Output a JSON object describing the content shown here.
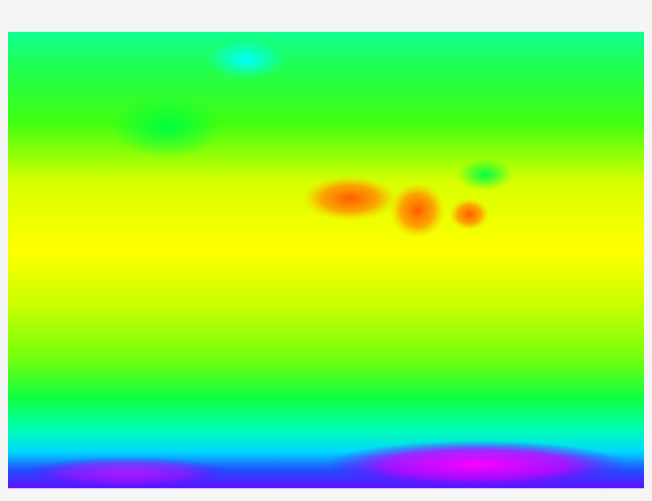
{
  "map": {
    "kind": "global temperature heatmap, equirectangular projection",
    "colorscale": [
      "#ff00ff",
      "#6a00ff",
      "#0040ff",
      "#00ffff",
      "#00ff80",
      "#00ff00",
      "#80ff00",
      "#ffff00",
      "#ff8000",
      "#ff4000"
    ],
    "background": "#f5f5f5"
  }
}
